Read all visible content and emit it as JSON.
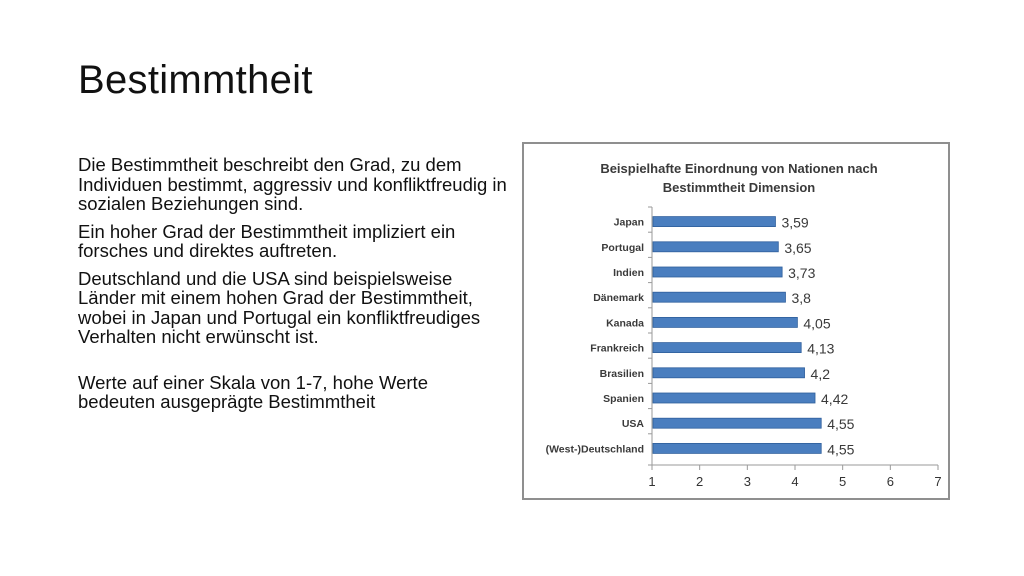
{
  "slide": {
    "title": "Bestimmtheit",
    "paragraphs": [
      "Die Bestimmtheit beschreibt den Grad, zu dem Individuen bestimmt, aggressiv und konfliktfreudig in sozialen Beziehungen sind.",
      "Ein hoher Grad der Bestimmtheit impliziert ein forsches und direktes auftreten.",
      "Deutschland und die USA sind beispielsweise Länder mit einem hohen Grad der Bestimmtheit, wobei in Japan und Portugal ein konfliktfreudiges Verhalten nicht erwünscht ist.",
      "Werte auf einer Skala von 1-7, hohe Werte bedeuten ausgeprägte Bestimmtheit"
    ]
  },
  "chart_data": {
    "type": "bar",
    "orientation": "horizontal",
    "title_lines": [
      "Beispielhafte Einordnung von Nationen nach",
      "Bestimmtheit Dimension"
    ],
    "categories": [
      "Japan",
      "Portugal",
      "Indien",
      "Dänemark",
      "Kanada",
      "Frankreich",
      "Brasilien",
      "Spanien",
      "USA",
      "(West-)Deutschland"
    ],
    "values": [
      3.59,
      3.65,
      3.73,
      3.8,
      4.05,
      4.13,
      4.2,
      4.42,
      4.55,
      4.55
    ],
    "data_labels": [
      "3,59",
      "3,65",
      "3,73",
      "3,8",
      "4,05",
      "4,13",
      "4,2",
      "4,42",
      "4,55",
      "4,55"
    ],
    "x_ticks": [
      "1",
      "2",
      "3",
      "4",
      "5",
      "6",
      "7"
    ],
    "xlim": [
      1,
      7
    ],
    "grid": false,
    "legend": "none",
    "bar_color": "#4a7ebf",
    "bar_edge_color": "#2f5f9c"
  }
}
